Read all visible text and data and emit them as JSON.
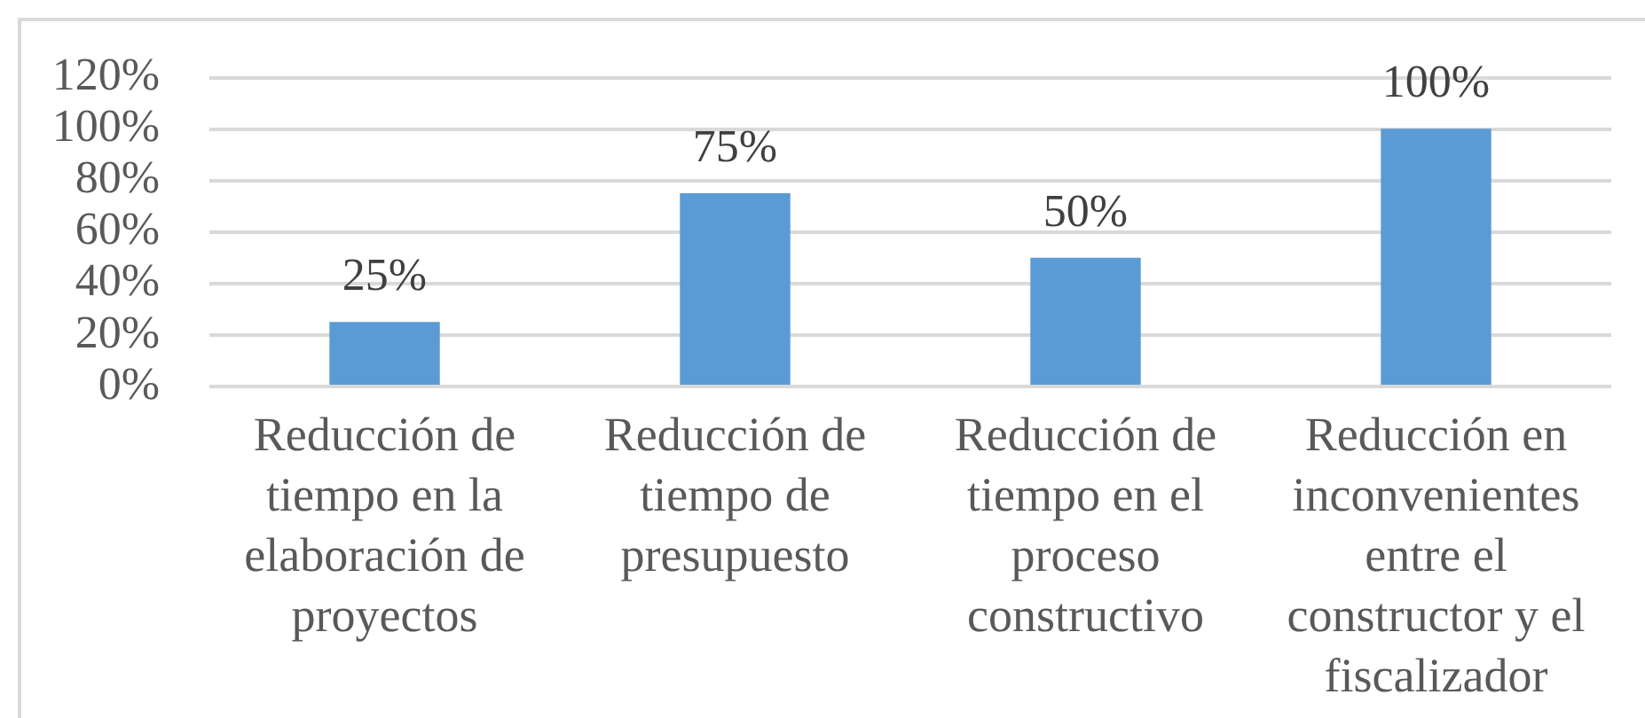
{
  "chart_data": {
    "type": "bar",
    "categories": [
      "Reducción de tiempo en la elaboración de proyectos",
      "Reducción de tiempo de presupuesto",
      "Reducción de tiempo en el proceso constructivo",
      "Reducción en inconvenientes entre el constructor y el fiscalizador"
    ],
    "values": [
      25,
      75,
      50,
      100
    ],
    "color": "#5b9bd5",
    "value_labels": [
      "25%",
      "75%",
      "50%",
      "100%"
    ],
    "ylim": [
      0,
      120
    ],
    "yticks": [
      {
        "value": 0,
        "label": "0%"
      },
      {
        "value": 20,
        "label": "20%"
      },
      {
        "value": 40,
        "label": "40%"
      },
      {
        "value": 60,
        "label": "60%"
      },
      {
        "value": 80,
        "label": "80%"
      },
      {
        "value": 100,
        "label": "100%"
      },
      {
        "value": 120,
        "label": "120%"
      }
    ],
    "grid": "y"
  }
}
